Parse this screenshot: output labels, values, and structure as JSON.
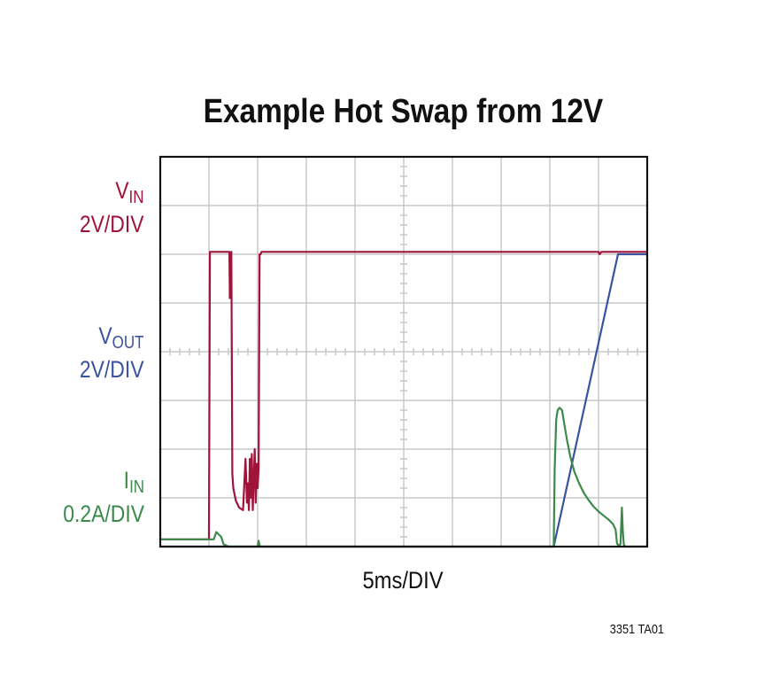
{
  "chart_data": {
    "type": "line",
    "title": "Example Hot Swap from 12V",
    "xlabel": "5ms/DIV",
    "figure_id": "3351 TA01",
    "grid": true,
    "x_divisions": 10,
    "y_divisions": 8,
    "xlim": [
      0,
      10
    ],
    "ylim": [
      0,
      8
    ],
    "channel_labels": [
      {
        "name": "V",
        "sub": "IN",
        "scale": "2V/DIV",
        "color": "#a0143c"
      },
      {
        "name": "V",
        "sub": "OUT",
        "scale": "2V/DIV",
        "color": "#3a53a0"
      },
      {
        "name": "I",
        "sub": "IN",
        "scale": "0.2A/DIV",
        "color": "#3b8a4c"
      }
    ],
    "series": [
      {
        "name": "VIN",
        "color": "#a0143c",
        "x": [
          0,
          1.0,
          1.0,
          1.02,
          1.04,
          1.4,
          1.42,
          1.43,
          1.44,
          1.46,
          1.48,
          1.5,
          1.55,
          1.62,
          1.7,
          1.75,
          1.78,
          1.8,
          1.82,
          1.84,
          1.86,
          1.88,
          1.9,
          1.92,
          1.94,
          1.96,
          1.98,
          2.0,
          2.02,
          2.04,
          2.06,
          2.08,
          9.0,
          9.02,
          9.06,
          10.0
        ],
        "y": [
          0.15,
          0.15,
          0.2,
          6.05,
          6.05,
          6.05,
          6.05,
          5.1,
          6.0,
          6.05,
          1.5,
          1.2,
          0.95,
          0.8,
          0.75,
          1.8,
          0.9,
          1.3,
          0.75,
          1.8,
          1.0,
          1.9,
          0.75,
          1.4,
          2.0,
          0.9,
          1.7,
          1.2,
          1.6,
          6.0,
          6.0,
          6.05,
          6.05,
          6.0,
          6.05,
          6.05
        ]
      },
      {
        "name": "VOUT",
        "color": "#3a53a0",
        "x": [
          0,
          8.08,
          9.4,
          10.0
        ],
        "y": [
          0,
          0,
          6.0,
          6.0
        ]
      },
      {
        "name": "IIN",
        "color": "#3b8a4c",
        "x": [
          0,
          1.1,
          1.15,
          1.25,
          1.3,
          1.4,
          2.0,
          2.02,
          2.04,
          2.06,
          8.08,
          8.1,
          8.13,
          8.16,
          8.2,
          8.25,
          8.3,
          8.35,
          8.42,
          8.5,
          8.6,
          8.7,
          8.8,
          8.9,
          9.0,
          9.1,
          9.2,
          9.3,
          9.35,
          9.38,
          9.42,
          9.45,
          9.48,
          9.5,
          9.52,
          9.55,
          9.58,
          10.0
        ],
        "y": [
          0.15,
          0.15,
          0.3,
          0.2,
          0.05,
          0.0,
          0.0,
          0.12,
          0.02,
          0.0,
          0.0,
          1.6,
          2.6,
          2.8,
          2.85,
          2.8,
          2.5,
          2.2,
          1.85,
          1.55,
          1.3,
          1.1,
          0.95,
          0.82,
          0.72,
          0.64,
          0.56,
          0.46,
          0.35,
          0.06,
          0.02,
          0.05,
          0.8,
          0.3,
          0.04,
          0.0,
          0.0,
          0.0
        ]
      }
    ]
  }
}
